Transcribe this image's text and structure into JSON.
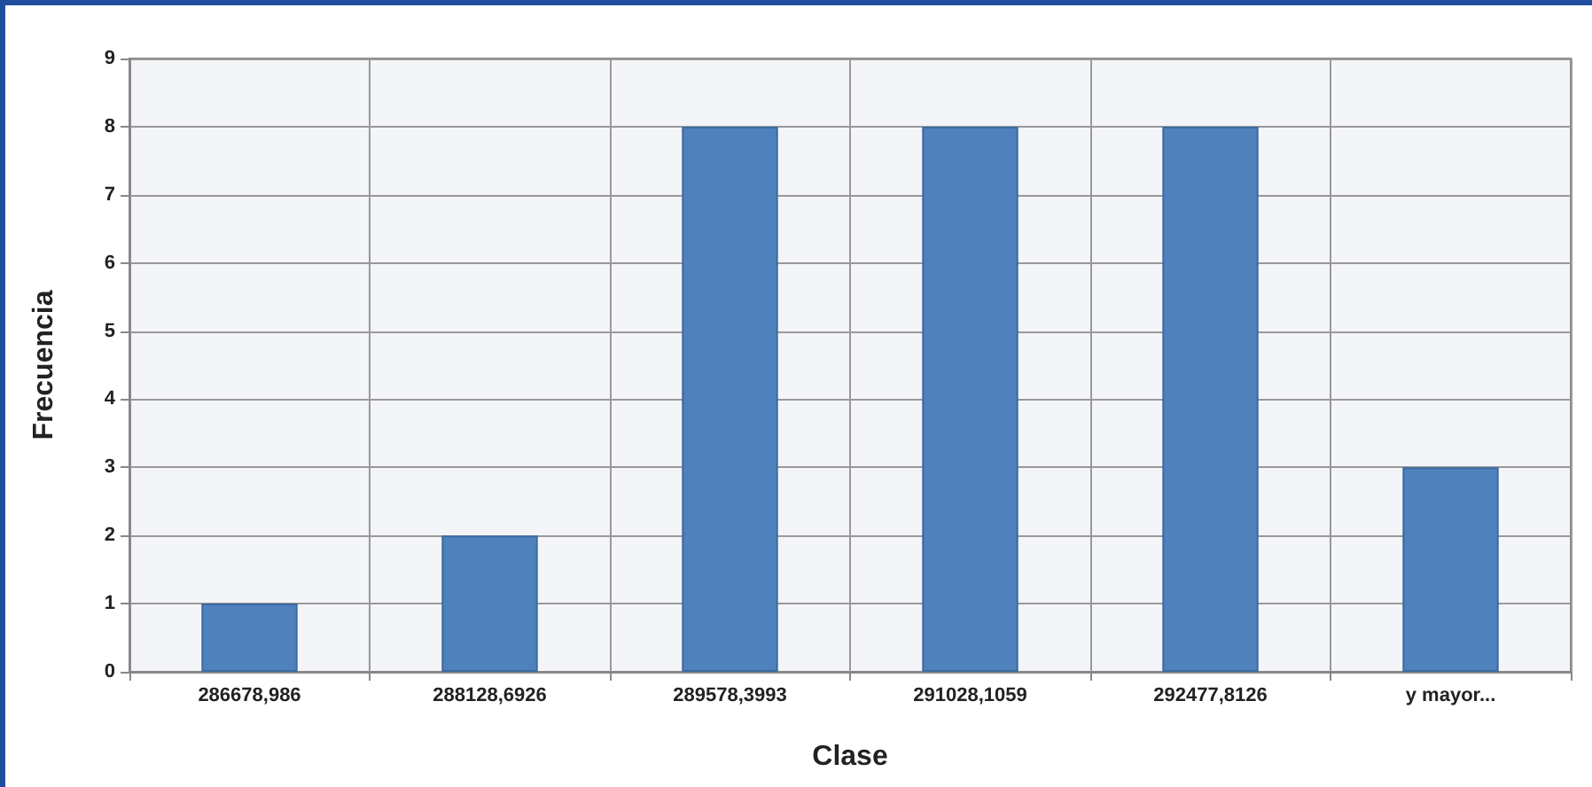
{
  "chart_data": {
    "type": "bar",
    "xlabel": "Clase",
    "ylabel": "Frecuencia",
    "categories": [
      "286678,986",
      "288128,6926",
      "289578,3993",
      "291028,1059",
      "292477,8126",
      "y mayor..."
    ],
    "values": [
      1,
      2,
      8,
      8,
      8,
      3
    ],
    "color": "#4f81bd",
    "ylim": [
      0,
      9
    ],
    "yticks": [
      0,
      1,
      2,
      3,
      4,
      5,
      6,
      7,
      8,
      9
    ],
    "grid": true
  }
}
